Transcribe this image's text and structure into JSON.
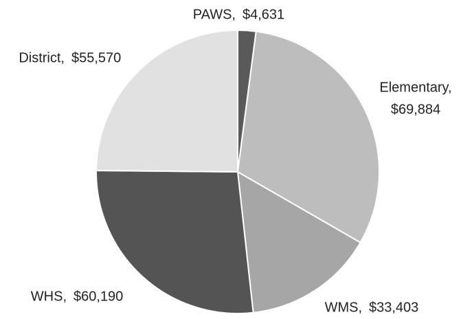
{
  "chart_data": {
    "type": "pie",
    "categories": [
      "PAWS,",
      "Elementary,",
      "WMS,",
      "WHS,",
      "District,"
    ],
    "values": [
      4631,
      69884,
      33403,
      60190,
      55570
    ],
    "value_labels": [
      "$4,631",
      "$69,884",
      "$33,403",
      "$60,190",
      "$55,570"
    ],
    "colors": [
      "#5a5a5a",
      "#bdbdbd",
      "#a6a6a6",
      "#545454",
      "#e1e1e1"
    ]
  }
}
